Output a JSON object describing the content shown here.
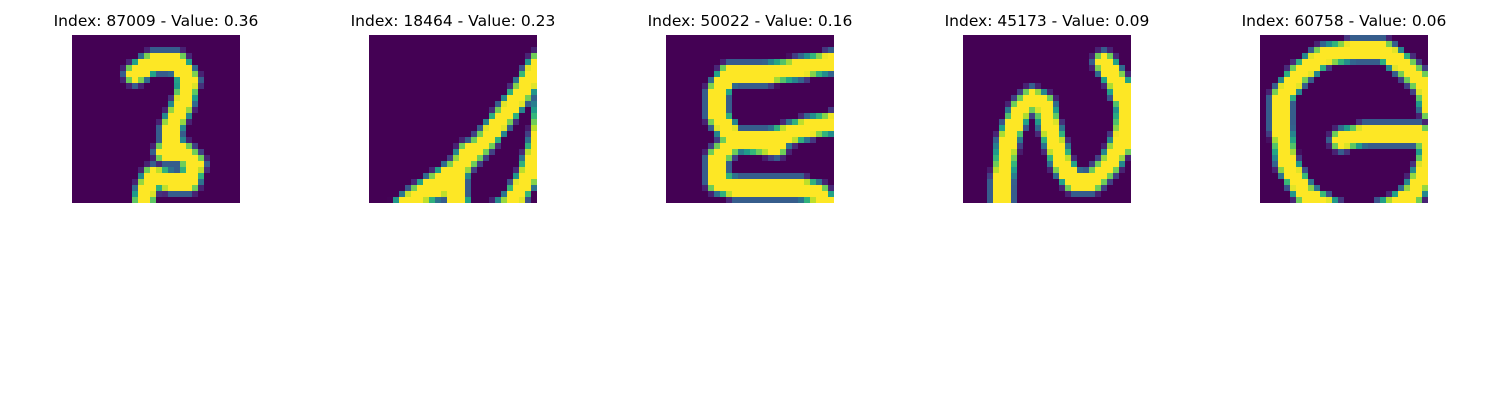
{
  "colormap": "viridis",
  "background_color": "#440154",
  "panels": [
    {
      "title": "Index: 87009 - Value: 0.36",
      "glyph": "hand-drawn-digit-2-image",
      "strokes": [
        [
          [
            10,
            6
          ],
          [
            13,
            4
          ],
          [
            17,
            4
          ],
          [
            19,
            7
          ],
          [
            18,
            11
          ],
          [
            16,
            15
          ],
          [
            16,
            18
          ],
          [
            18,
            19
          ],
          [
            20,
            21
          ],
          [
            19,
            24
          ],
          [
            16,
            24
          ],
          [
            13,
            23
          ],
          [
            12,
            25
          ],
          [
            11,
            29
          ],
          [
            10,
            33
          ]
        ],
        [
          [
            15,
            19
          ],
          [
            18,
            19
          ],
          [
            19,
            20
          ]
        ]
      ]
    },
    {
      "title": "Index: 18464 - Value: 0.23",
      "glyph": "hand-drawn-letter-A-image",
      "strokes": [
        [
          [
            3,
            30
          ],
          [
            8,
            26
          ],
          [
            14,
            22
          ],
          [
            19,
            17
          ],
          [
            25,
            9
          ],
          [
            28,
            4
          ],
          [
            29,
            10
          ],
          [
            28,
            17
          ],
          [
            26,
            23
          ],
          [
            23,
            28
          ],
          [
            19,
            30
          ],
          [
            16,
            30
          ],
          [
            14,
            27
          ],
          [
            14,
            23
          ],
          [
            16,
            19
          ]
        ],
        [
          [
            8,
            26
          ],
          [
            14,
            24
          ]
        ]
      ]
    },
    {
      "title": "Index: 50022 - Value: 0.16",
      "glyph": "hand-drawn-letter-E-image",
      "strokes": [
        [
          [
            27,
            4
          ],
          [
            22,
            5
          ],
          [
            16,
            6
          ],
          [
            10,
            6
          ],
          [
            8,
            9
          ],
          [
            8,
            13
          ],
          [
            11,
            17
          ],
          [
            17,
            17
          ],
          [
            23,
            15
          ],
          [
            28,
            14
          ]
        ],
        [
          [
            11,
            17
          ],
          [
            8,
            20
          ],
          [
            8,
            24
          ],
          [
            11,
            25
          ],
          [
            17,
            25
          ],
          [
            22,
            25
          ],
          [
            25,
            26
          ],
          [
            27,
            29
          ]
        ],
        [
          [
            11,
            17
          ],
          [
            18,
            18
          ]
        ]
      ]
    },
    {
      "title": "Index: 45173 - Value: 0.09",
      "glyph": "hand-drawn-letter-N-image",
      "strokes": [
        [
          [
            6,
            29
          ],
          [
            6,
            24
          ],
          [
            7,
            17
          ],
          [
            9,
            12
          ],
          [
            11,
            10
          ],
          [
            13,
            11
          ],
          [
            14,
            15
          ],
          [
            16,
            21
          ],
          [
            18,
            24
          ],
          [
            21,
            24
          ],
          [
            24,
            21
          ],
          [
            26,
            17
          ],
          [
            27,
            12
          ],
          [
            25,
            7
          ],
          [
            23,
            4
          ]
        ],
        [
          [
            25,
            7
          ],
          [
            27,
            10
          ],
          [
            26,
            18
          ]
        ]
      ]
    },
    {
      "title": "Index: 60758 - Value: 0.06",
      "glyph": "hand-drawn-letter-G-image",
      "strokes": [
        [
          [
            28,
            12
          ],
          [
            27,
            8
          ],
          [
            24,
            5
          ],
          [
            20,
            2
          ],
          [
            15,
            2
          ],
          [
            10,
            3
          ],
          [
            6,
            6
          ],
          [
            3,
            10
          ],
          [
            3,
            15
          ],
          [
            4,
            21
          ],
          [
            7,
            26
          ],
          [
            12,
            29
          ],
          [
            17,
            30
          ],
          [
            22,
            28
          ],
          [
            25,
            26
          ],
          [
            27,
            22
          ],
          [
            28,
            18
          ],
          [
            26,
            16
          ],
          [
            21,
            16
          ],
          [
            17,
            16
          ],
          [
            13,
            17
          ]
        ]
      ]
    }
  ]
}
